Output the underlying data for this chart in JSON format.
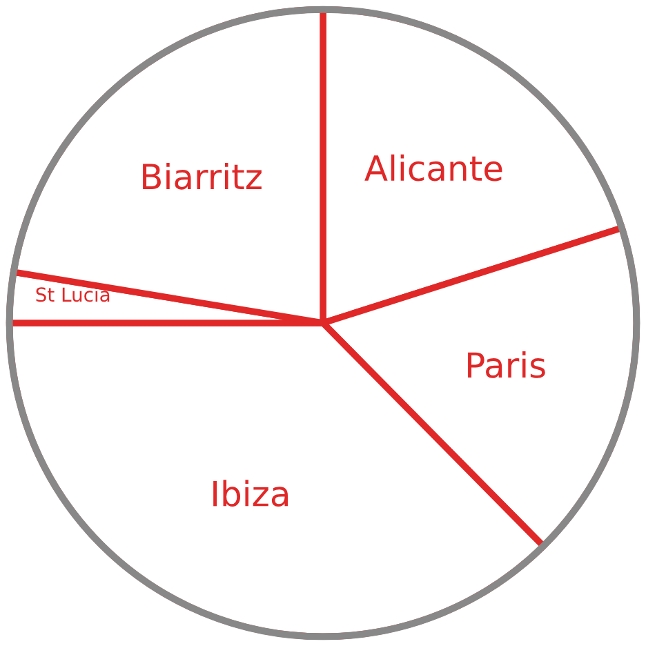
{
  "chart_data": {
    "type": "pie",
    "categories": [
      "Alicante",
      "Paris",
      "Ibiza",
      "St Lucia",
      "Biarritz"
    ],
    "values": [
      20.1,
      17.5,
      37.4,
      2.6,
      22.4
    ],
    "colors": [
      "#ffffff",
      "#ffffff",
      "#ffffff",
      "#ffffff",
      "#ffffff"
    ]
  }
}
